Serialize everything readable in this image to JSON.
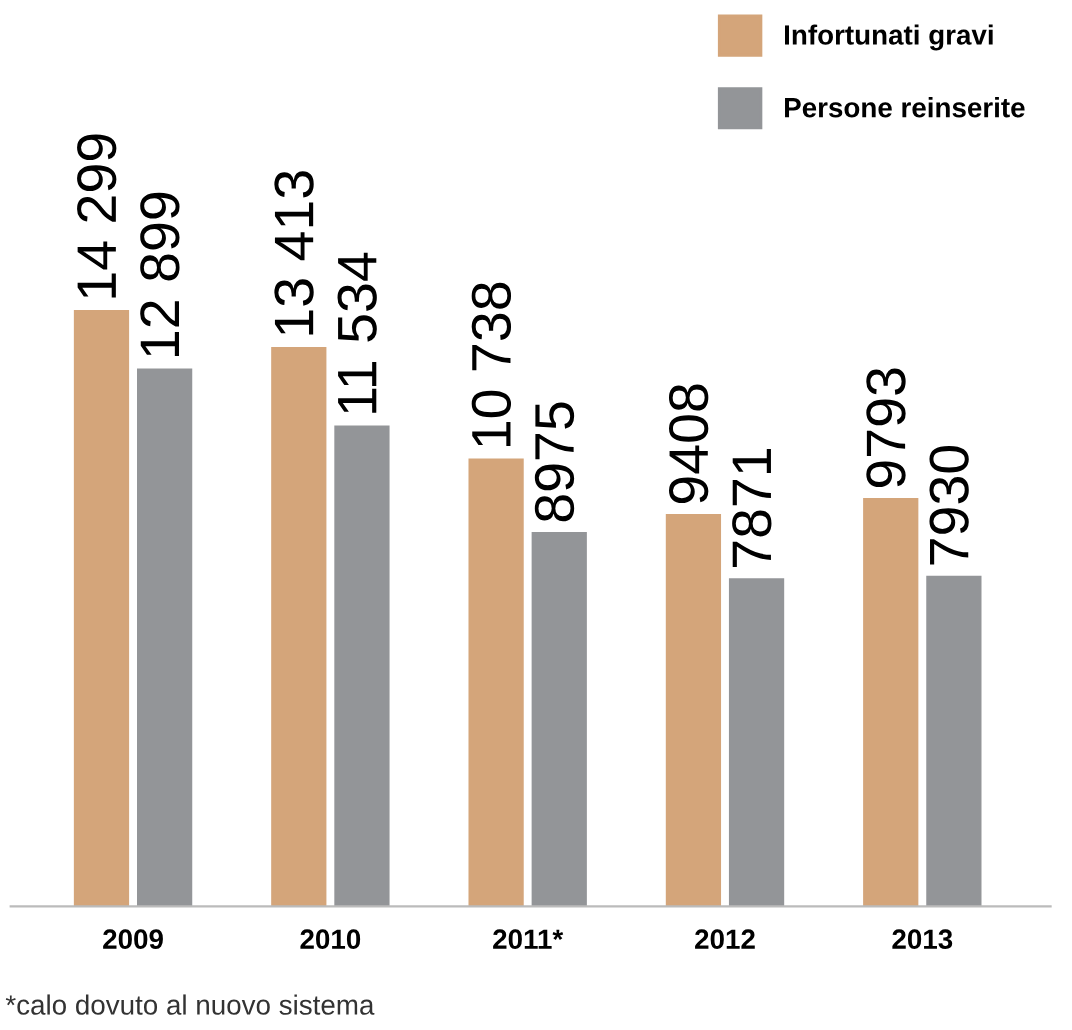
{
  "chart_data": {
    "type": "bar",
    "categories": [
      "2009",
      "2010",
      "2011*",
      "2012",
      "2013"
    ],
    "series": [
      {
        "name": "Infortunati gravi",
        "color": "#d4a57a",
        "values": [
          14299,
          13413,
          10738,
          9408,
          9793
        ],
        "value_labels": [
          "14 299",
          "13 413",
          "10 738",
          "9408",
          "9793"
        ]
      },
      {
        "name": "Persone reinserite",
        "color": "#939598",
        "values": [
          12899,
          11534,
          8975,
          7871,
          7930
        ],
        "value_labels": [
          "12 899",
          "11 534",
          "8975",
          "7871",
          "7930"
        ]
      }
    ],
    "legend": "top right",
    "grid": false,
    "tick_labels": "x",
    "annotations": [
      "*calo dovuto al nuovo sistema"
    ]
  }
}
